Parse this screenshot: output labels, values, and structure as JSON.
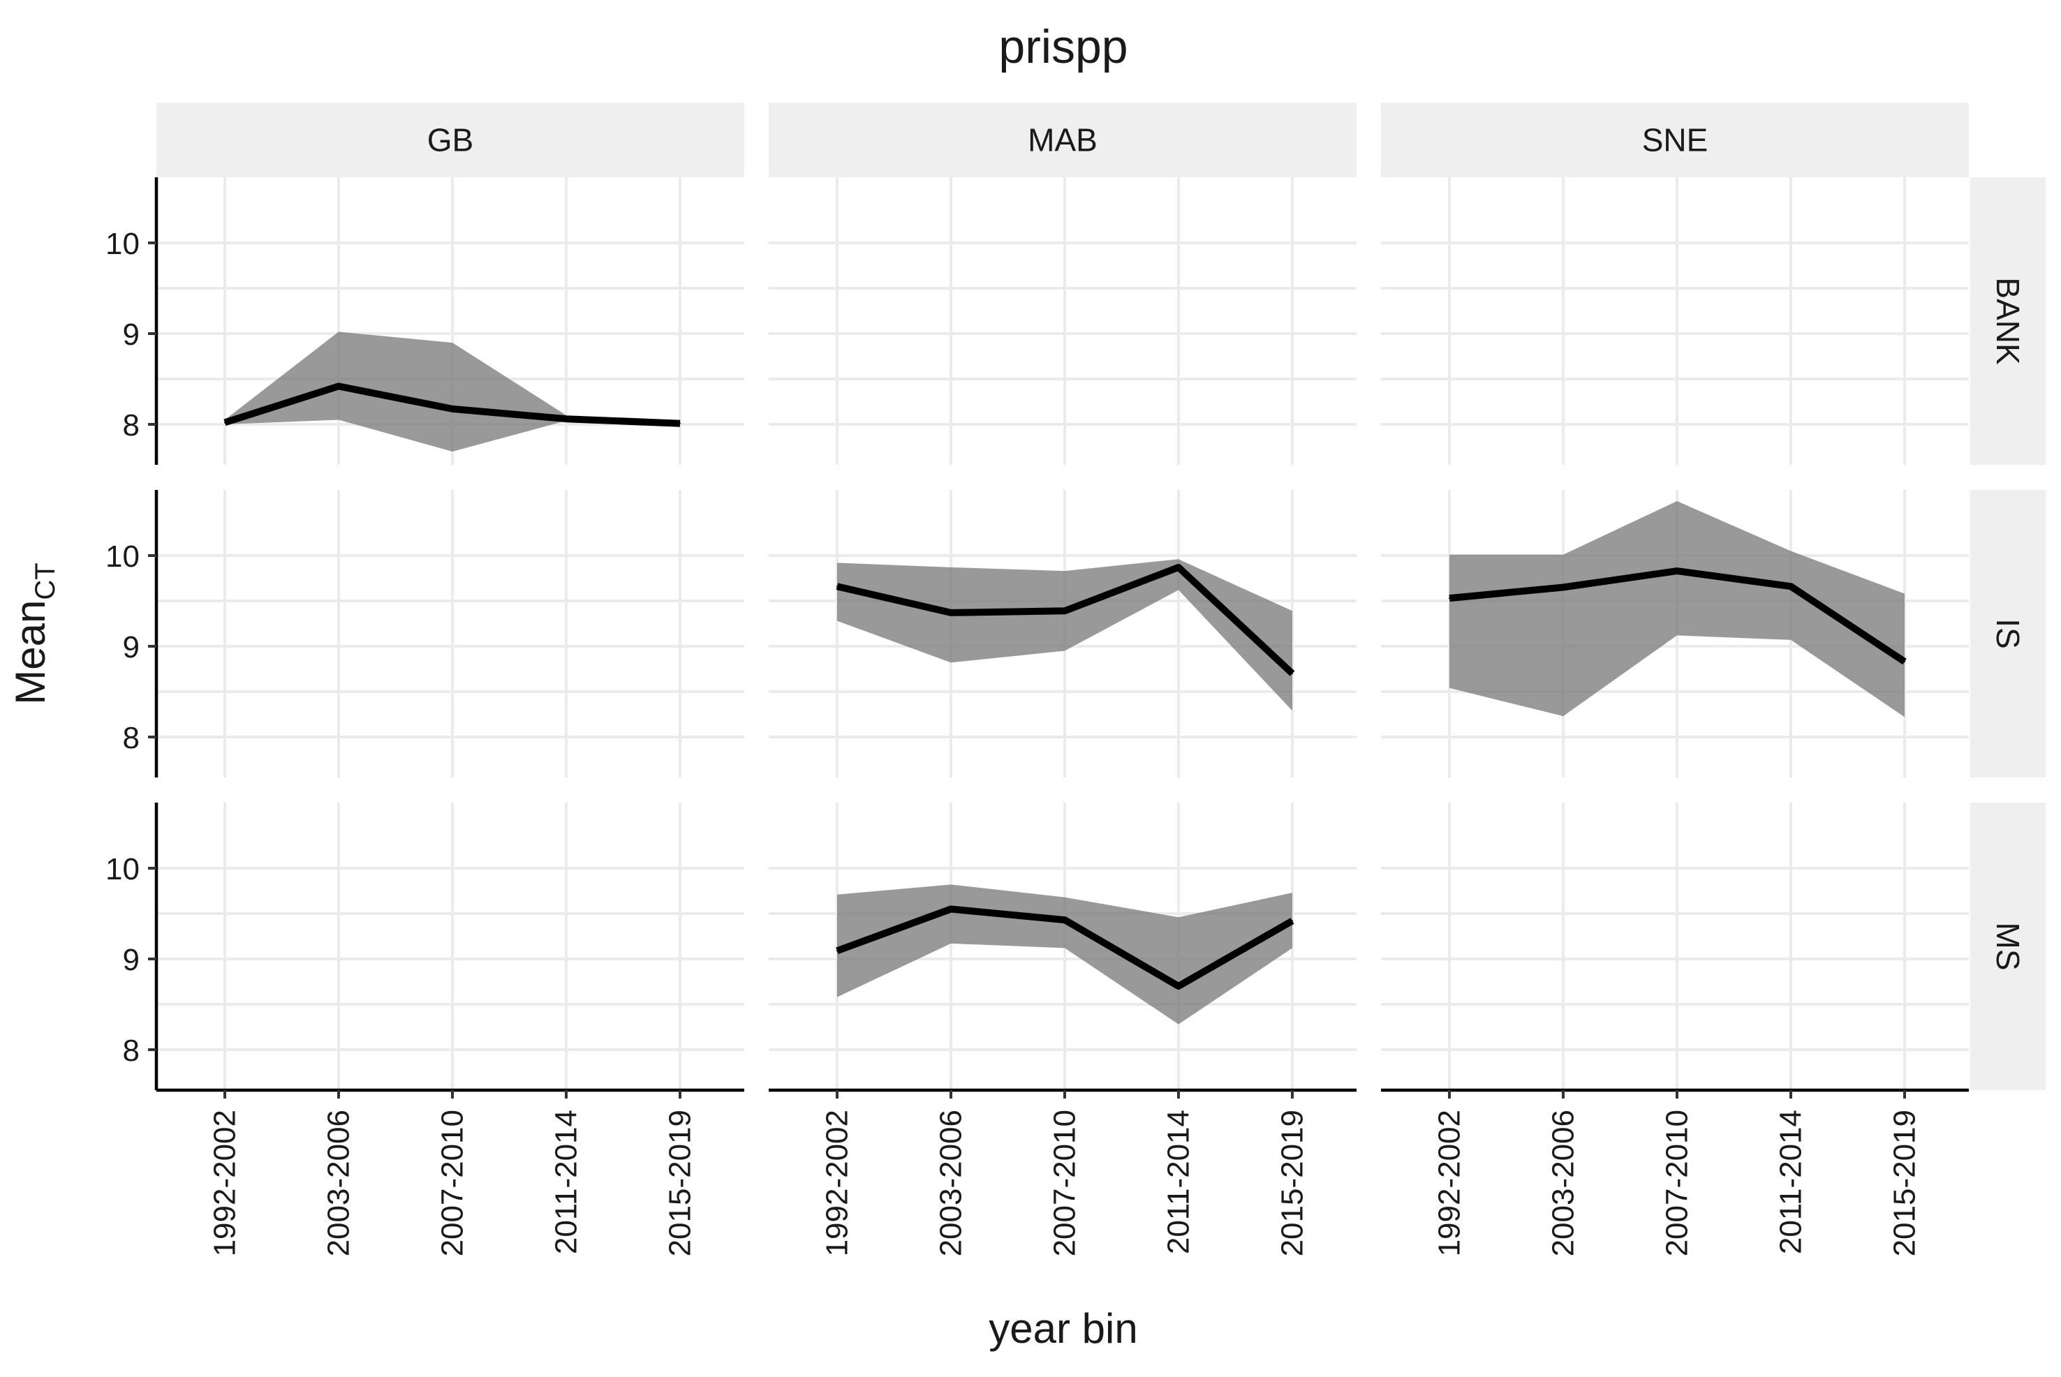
{
  "chart_data": {
    "type": "line",
    "title": "prispp",
    "xlabel": "year bin",
    "ylabel": "Mean",
    "ylabel_sub": "CT",
    "categories": [
      "1992-2002",
      "2003-2006",
      "2007-2010",
      "2011-2014",
      "2015-2019"
    ],
    "ylim": [
      7.55,
      10.7
    ],
    "yticks": [
      8,
      9,
      10
    ],
    "grid": true,
    "columns": [
      "GB",
      "MAB",
      "SNE"
    ],
    "rows": [
      "BANK",
      "IS",
      "MS"
    ],
    "panels": [
      {
        "col": "GB",
        "row": "BANK",
        "values": [
          8.02,
          8.42,
          8.17,
          8.06,
          8.01
        ],
        "lower": [
          8.0,
          8.05,
          7.7,
          8.04,
          null
        ],
        "upper": [
          8.05,
          9.02,
          8.9,
          8.1,
          null
        ]
      },
      {
        "col": "MAB",
        "row": "BANK",
        "values": [],
        "lower": [],
        "upper": []
      },
      {
        "col": "SNE",
        "row": "BANK",
        "values": [],
        "lower": [],
        "upper": []
      },
      {
        "col": "GB",
        "row": "IS",
        "values": [],
        "lower": [],
        "upper": []
      },
      {
        "col": "MAB",
        "row": "IS",
        "values": [
          9.66,
          9.37,
          9.39,
          9.87,
          8.7
        ],
        "lower": [
          9.28,
          8.82,
          8.95,
          9.62,
          8.29
        ],
        "upper": [
          9.92,
          9.87,
          9.83,
          9.96,
          9.39
        ]
      },
      {
        "col": "SNE",
        "row": "IS",
        "values": [
          9.53,
          9.65,
          9.83,
          9.66,
          8.83
        ],
        "lower": [
          8.54,
          8.23,
          9.12,
          9.07,
          8.22
        ],
        "upper": [
          10.01,
          10.01,
          10.6,
          10.05,
          9.58
        ]
      },
      {
        "col": "GB",
        "row": "MS",
        "values": [],
        "lower": [],
        "upper": []
      },
      {
        "col": "MAB",
        "row": "MS",
        "values": [
          9.09,
          9.55,
          9.43,
          8.7,
          9.42
        ],
        "lower": [
          8.58,
          9.17,
          9.12,
          8.28,
          9.12
        ],
        "upper": [
          9.71,
          9.82,
          9.68,
          9.46,
          9.73
        ]
      },
      {
        "col": "SNE",
        "row": "MS",
        "values": [],
        "lower": [],
        "upper": []
      }
    ]
  }
}
